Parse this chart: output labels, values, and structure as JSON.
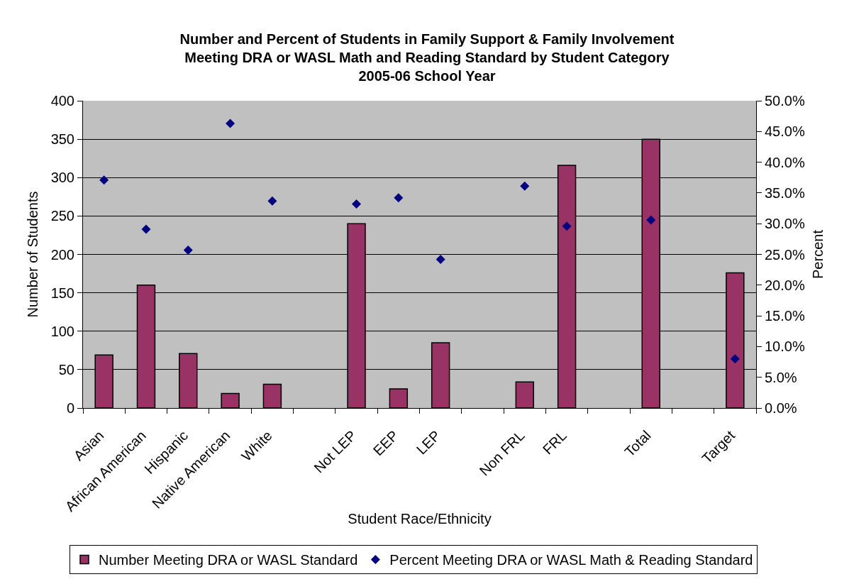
{
  "chart_data": {
    "type": "bar",
    "title": "Number and Percent of Students in Family Support & Family Involvement\nMeeting DRA or WASL Math and Reading Standard by Student Category\n2005-06 School Year",
    "xlabel": "Student Race/Ethnicity",
    "ylabel": "Number of Students",
    "y2label": "Percent",
    "categories": [
      "Asian",
      "African American",
      "Hispanic",
      "Native American",
      "White",
      null,
      "Not LEP",
      "EEP",
      "LEP",
      null,
      "Non FRL",
      "FRL",
      null,
      "Total",
      null,
      "Target"
    ],
    "series": [
      {
        "name": "Number Meeting DRA or WASL Standard",
        "color": "#993366",
        "values": [
          69,
          160,
          71,
          19,
          31,
          null,
          240,
          25,
          85,
          null,
          34,
          316,
          null,
          350,
          null,
          176
        ]
      },
      {
        "name": "Percent Meeting DRA or WASL Math & Reading Standard",
        "type": "scatter",
        "axis": "y2",
        "marker": "diamond",
        "color": "#000080",
        "values": [
          37.1,
          29.1,
          25.7,
          46.3,
          33.7,
          null,
          33.2,
          34.2,
          24.2,
          null,
          36.1,
          29.6,
          null,
          30.6,
          null,
          8.0
        ]
      }
    ],
    "ylim": [
      0,
      400
    ],
    "yticks": [
      0,
      50,
      100,
      150,
      200,
      250,
      300,
      350,
      400
    ],
    "y2lim": [
      0,
      50
    ],
    "y2ticks": [
      {
        "value": 0,
        "label": "0.0%"
      },
      {
        "value": 5,
        "label": "5.0%"
      },
      {
        "value": 10,
        "label": "10.0%"
      },
      {
        "value": 15,
        "label": "15.0%"
      },
      {
        "value": 20,
        "label": "20.0%"
      },
      {
        "value": 25,
        "label": "25.0%"
      },
      {
        "value": 30,
        "label": "30.0%"
      },
      {
        "value": 35,
        "label": "35.0%"
      },
      {
        "value": 40,
        "label": "40.0%"
      },
      {
        "value": 45,
        "label": "45.0%"
      },
      {
        "value": 50,
        "label": "50.0%"
      }
    ],
    "grid": "y",
    "legend": "bottom"
  }
}
